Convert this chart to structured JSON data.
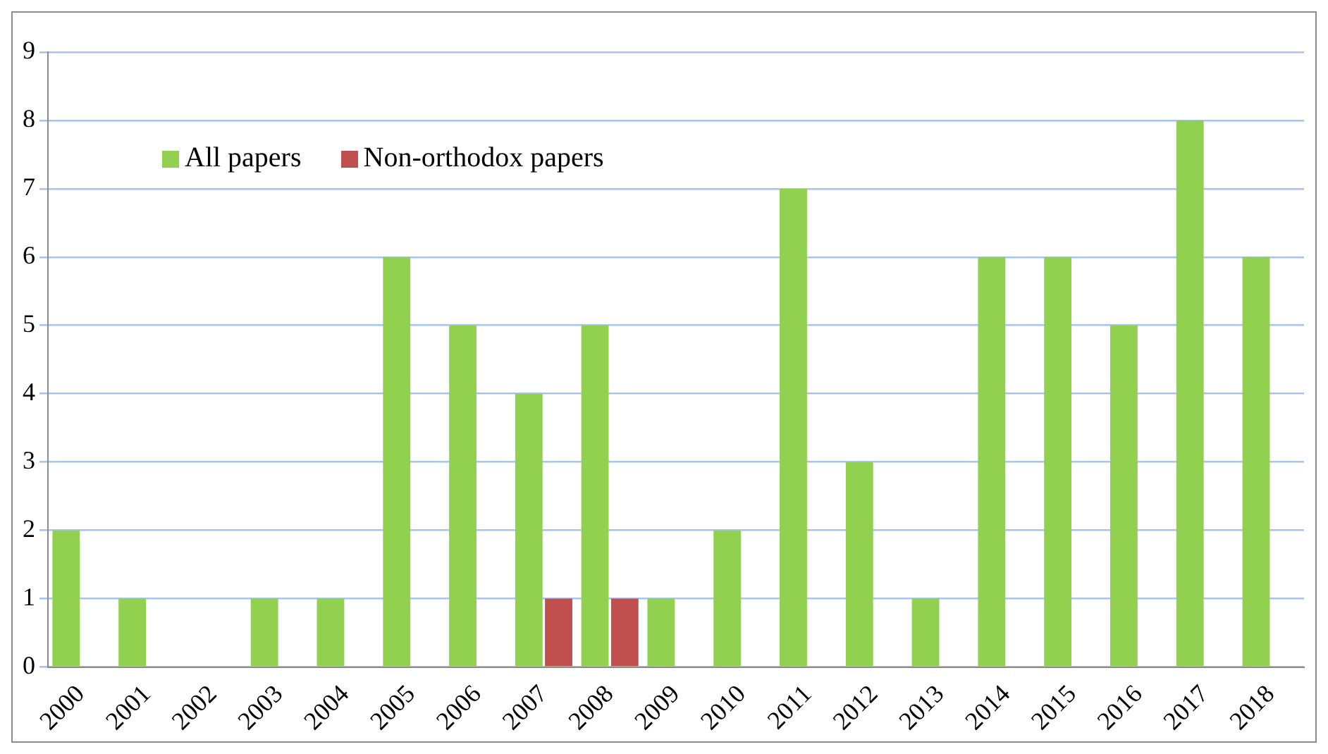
{
  "chart_data": {
    "type": "bar",
    "categories": [
      "2000",
      "2001",
      "2002",
      "2003",
      "2004",
      "2005",
      "2006",
      "2007",
      "2008",
      "2009",
      "2010",
      "2011",
      "2012",
      "2013",
      "2014",
      "2015",
      "2016",
      "2017",
      "2018"
    ],
    "series": [
      {
        "name": "All papers",
        "color": "#92d050",
        "values": [
          2,
          1,
          0,
          1,
          1,
          6,
          5,
          4,
          5,
          1,
          2,
          7,
          3,
          1,
          6,
          6,
          5,
          8,
          6
        ]
      },
      {
        "name": "Non-orthodox papers",
        "color": "#c0504d",
        "values": [
          0,
          0,
          0,
          0,
          0,
          0,
          0,
          1,
          1,
          0,
          0,
          0,
          0,
          0,
          0,
          0,
          0,
          0,
          0
        ]
      }
    ],
    "ylim": [
      0,
      9
    ],
    "yticks": [
      0,
      1,
      2,
      3,
      4,
      5,
      6,
      7,
      8,
      9
    ],
    "grid": "y",
    "legend": "top left"
  }
}
